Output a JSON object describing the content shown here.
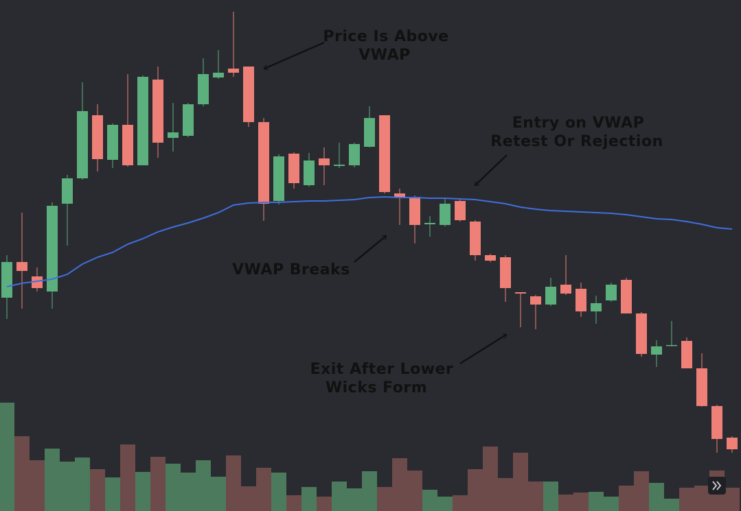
{
  "chart_data": {
    "type": "candlestick",
    "up_color": "#5cb07d",
    "down_color": "#ef8078",
    "volume_up_color": "#4b7a5c",
    "volume_down_color": "#6d4b4b",
    "vwap_color": "#3f6fe0",
    "ylim": [
      0,
      745
    ],
    "volume_lim": [
      0,
      745
    ],
    "open": [
      311,
      363,
      342,
      320,
      448,
      485,
      577,
      512,
      563,
      504,
      629,
      544,
      547,
      593,
      632,
      645,
      648,
      567,
      452,
      521,
      475,
      514,
      503,
      504,
      531,
      577,
      463,
      458,
      418,
      417,
      452,
      422,
      373,
      370,
      319,
      313,
      301,
      330,
      324,
      291,
      307,
      337,
      288,
      228,
      241,
      248,
      208,
      153,
      107
    ],
    "high": [
      373,
      435,
      355,
      450,
      490,
      625,
      593,
      565,
      637,
      635,
      648,
      595,
      595,
      660,
      672,
      728,
      648,
      573,
      520,
      523,
      522,
      530,
      537,
      537,
      590,
      577,
      470,
      460,
      430,
      457,
      455,
      424,
      375,
      373,
      319,
      315,
      340,
      373,
      333,
      314,
      333,
      340,
      290,
      249,
      277,
      253,
      230,
      155,
      109
    ],
    "low": [
      280,
      295,
      320,
      295,
      387,
      483,
      495,
      500,
      502,
      504,
      515,
      524,
      545,
      590,
      630,
      633,
      560,
      423,
      447,
      470,
      473,
      475,
      500,
      501,
      530,
      463,
      417,
      390,
      400,
      415,
      422,
      365,
      363,
      305,
      268,
      265,
      299,
      315,
      283,
      273,
      305,
      288,
      225,
      210,
      240,
      208,
      152,
      85,
      85
    ],
    "close": [
      363,
      350,
      325,
      445,
      485,
      583,
      513,
      563,
      504,
      633,
      537,
      552,
      593,
      637,
      639,
      639,
      567,
      448,
      517,
      478,
      511,
      504,
      505,
      535,
      573,
      465,
      458,
      417,
      420,
      448,
      424,
      373,
      365,
      325,
      317,
      301,
      327,
      317,
      291,
      303,
      330,
      288,
      229,
      240,
      242,
      208,
      153,
      105,
      90
    ],
    "vwap": [
      327,
      332,
      335,
      338,
      345,
      360,
      370,
      377,
      389,
      397,
      407,
      414,
      420,
      427,
      435,
      446,
      449,
      450,
      450,
      451,
      452,
      452,
      453,
      454,
      457,
      458,
      457,
      457,
      456,
      456,
      455,
      454,
      451,
      448,
      443,
      440,
      438,
      437,
      436,
      435,
      434,
      432,
      429,
      426,
      425,
      422,
      418,
      413,
      411
    ],
    "volume": [
      158,
      109,
      74,
      91,
      72,
      78,
      61,
      49,
      97,
      57,
      79,
      69,
      56,
      74,
      50,
      81,
      36,
      63,
      56,
      23,
      35,
      21,
      43,
      33,
      58,
      35,
      77,
      59,
      31,
      21,
      23,
      61,
      94,
      48,
      85,
      43,
      43,
      24,
      27,
      28,
      21,
      37,
      58,
      41,
      18,
      34,
      37,
      59,
      34
    ],
    "annotations": [
      {
        "lines": [
          "Price Is Above",
          "VWAP"
        ]
      },
      {
        "lines": [
          "Entry on VWAP",
          "Retest Or Rejection"
        ]
      },
      {
        "lines": [
          "VWAP Breaks"
        ]
      },
      {
        "lines": [
          "Exit After Lower",
          "Wicks Form"
        ]
      }
    ]
  }
}
